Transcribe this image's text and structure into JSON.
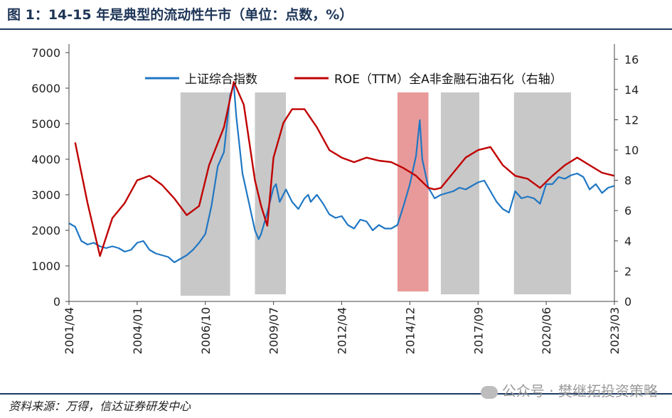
{
  "header": {
    "title": "图 1：14-15 年是典型的流动性牛市（单位：点数，%）"
  },
  "footer": {
    "source": "资料来源：万得，信达证券研发中心",
    "watermark": "公众号 · 樊继拓投资策略"
  },
  "chart_data": {
    "type": "line",
    "x_ticks": [
      "2001/04",
      "2004/01",
      "2006/10",
      "2009/07",
      "2012/04",
      "2014/12",
      "2017/09",
      "2020/06",
      "2023/03"
    ],
    "y_left_ticks": [
      0,
      1000,
      2000,
      3000,
      4000,
      5000,
      6000,
      7000
    ],
    "y_right_ticks": [
      0,
      2,
      4,
      6,
      8,
      10,
      12,
      14,
      16
    ],
    "ylim_left": [
      0,
      7000
    ],
    "ylim_right": [
      0,
      17
    ],
    "xlim": [
      2001.25,
      2023.25
    ],
    "legend_position": "top",
    "colors": {
      "index": "#1f77c4",
      "roe": "#c00000",
      "gray_band": "#c8c8c8",
      "red_band": "#e89a9a"
    },
    "series": [
      {
        "name": "上证综合指数",
        "axis": "left",
        "x": [
          2001.25,
          2001.5,
          2001.75,
          2002.0,
          2002.25,
          2002.5,
          2002.75,
          2003.0,
          2003.25,
          2003.5,
          2003.75,
          2004.0,
          2004.25,
          2004.5,
          2004.75,
          2005.0,
          2005.25,
          2005.5,
          2005.75,
          2006.0,
          2006.25,
          2006.5,
          2006.75,
          2007.0,
          2007.25,
          2007.5,
          2007.75,
          2007.9,
          2008.0,
          2008.25,
          2008.5,
          2008.75,
          2008.9,
          2009.0,
          2009.25,
          2009.5,
          2009.6,
          2009.75,
          2010.0,
          2010.25,
          2010.5,
          2010.75,
          2010.9,
          2011.0,
          2011.25,
          2011.5,
          2011.75,
          2012.0,
          2012.25,
          2012.5,
          2012.75,
          2013.0,
          2013.25,
          2013.5,
          2013.75,
          2014.0,
          2014.25,
          2014.5,
          2014.75,
          2015.0,
          2015.25,
          2015.4,
          2015.5,
          2015.75,
          2016.0,
          2016.25,
          2016.5,
          2016.75,
          2017.0,
          2017.25,
          2017.5,
          2017.75,
          2018.0,
          2018.25,
          2018.5,
          2018.75,
          2019.0,
          2019.25,
          2019.5,
          2019.75,
          2020.0,
          2020.25,
          2020.5,
          2020.75,
          2021.0,
          2021.25,
          2021.5,
          2021.75,
          2022.0,
          2022.25,
          2022.5,
          2022.75,
          2023.0,
          2023.25
        ],
        "values": [
          2200,
          2100,
          1700,
          1600,
          1650,
          1550,
          1500,
          1550,
          1500,
          1400,
          1450,
          1650,
          1700,
          1450,
          1350,
          1300,
          1250,
          1100,
          1200,
          1300,
          1450,
          1650,
          1900,
          2700,
          3800,
          4200,
          5800,
          6100,
          5200,
          3600,
          2800,
          2000,
          1750,
          1900,
          2500,
          3200,
          3300,
          2800,
          3150,
          2800,
          2600,
          2900,
          3000,
          2800,
          3000,
          2750,
          2450,
          2350,
          2400,
          2150,
          2050,
          2300,
          2250,
          2000,
          2150,
          2050,
          2050,
          2150,
          2700,
          3300,
          4100,
          5100,
          4000,
          3200,
          2900,
          3000,
          3050,
          3100,
          3200,
          3150,
          3250,
          3350,
          3400,
          3100,
          2800,
          2600,
          2500,
          3100,
          2900,
          2950,
          2900,
          2750,
          3300,
          3300,
          3500,
          3450,
          3550,
          3600,
          3500,
          3150,
          3300,
          3050,
          3200,
          3250
        ]
      },
      {
        "name": "ROE（TTM）全A非金融石油石化（右轴）",
        "axis": "right",
        "x": [
          2001.5,
          2002.0,
          2002.5,
          2003.0,
          2003.5,
          2004.0,
          2004.5,
          2005.0,
          2005.5,
          2006.0,
          2006.5,
          2006.9,
          2007.5,
          2007.9,
          2008.3,
          2008.75,
          2009.0,
          2009.25,
          2009.5,
          2009.9,
          2010.25,
          2010.75,
          2011.25,
          2011.75,
          2012.25,
          2012.75,
          2013.25,
          2013.75,
          2014.25,
          2014.75,
          2015.25,
          2015.75,
          2016.0,
          2016.25,
          2016.75,
          2017.25,
          2017.75,
          2018.25,
          2018.75,
          2019.25,
          2019.75,
          2020.25,
          2020.75,
          2021.25,
          2021.75,
          2022.25,
          2022.75,
          2023.25
        ],
        "values": [
          10.5,
          6.5,
          3.0,
          5.5,
          6.5,
          8.0,
          8.3,
          7.7,
          6.8,
          5.7,
          6.3,
          9.0,
          11.5,
          14.5,
          13.0,
          8.0,
          6.3,
          5.0,
          9.5,
          11.8,
          12.7,
          12.7,
          11.5,
          10.0,
          9.5,
          9.2,
          9.5,
          9.3,
          9.2,
          8.8,
          8.3,
          7.5,
          7.4,
          7.5,
          8.5,
          9.5,
          10.0,
          10.2,
          9.0,
          8.3,
          8.1,
          7.5,
          8.3,
          9.0,
          9.5,
          9.0,
          8.5,
          8.3
        ]
      }
    ],
    "shaded_periods": [
      {
        "start": 2005.75,
        "end": 2007.75,
        "style": "gray"
      },
      {
        "start": 2008.75,
        "end": 2010.0,
        "style": "gray"
      },
      {
        "start": 2014.5,
        "end": 2015.75,
        "style": "red"
      },
      {
        "start": 2016.25,
        "end": 2017.8,
        "style": "gray"
      },
      {
        "start": 2019.2,
        "end": 2021.5,
        "style": "gray"
      }
    ]
  }
}
